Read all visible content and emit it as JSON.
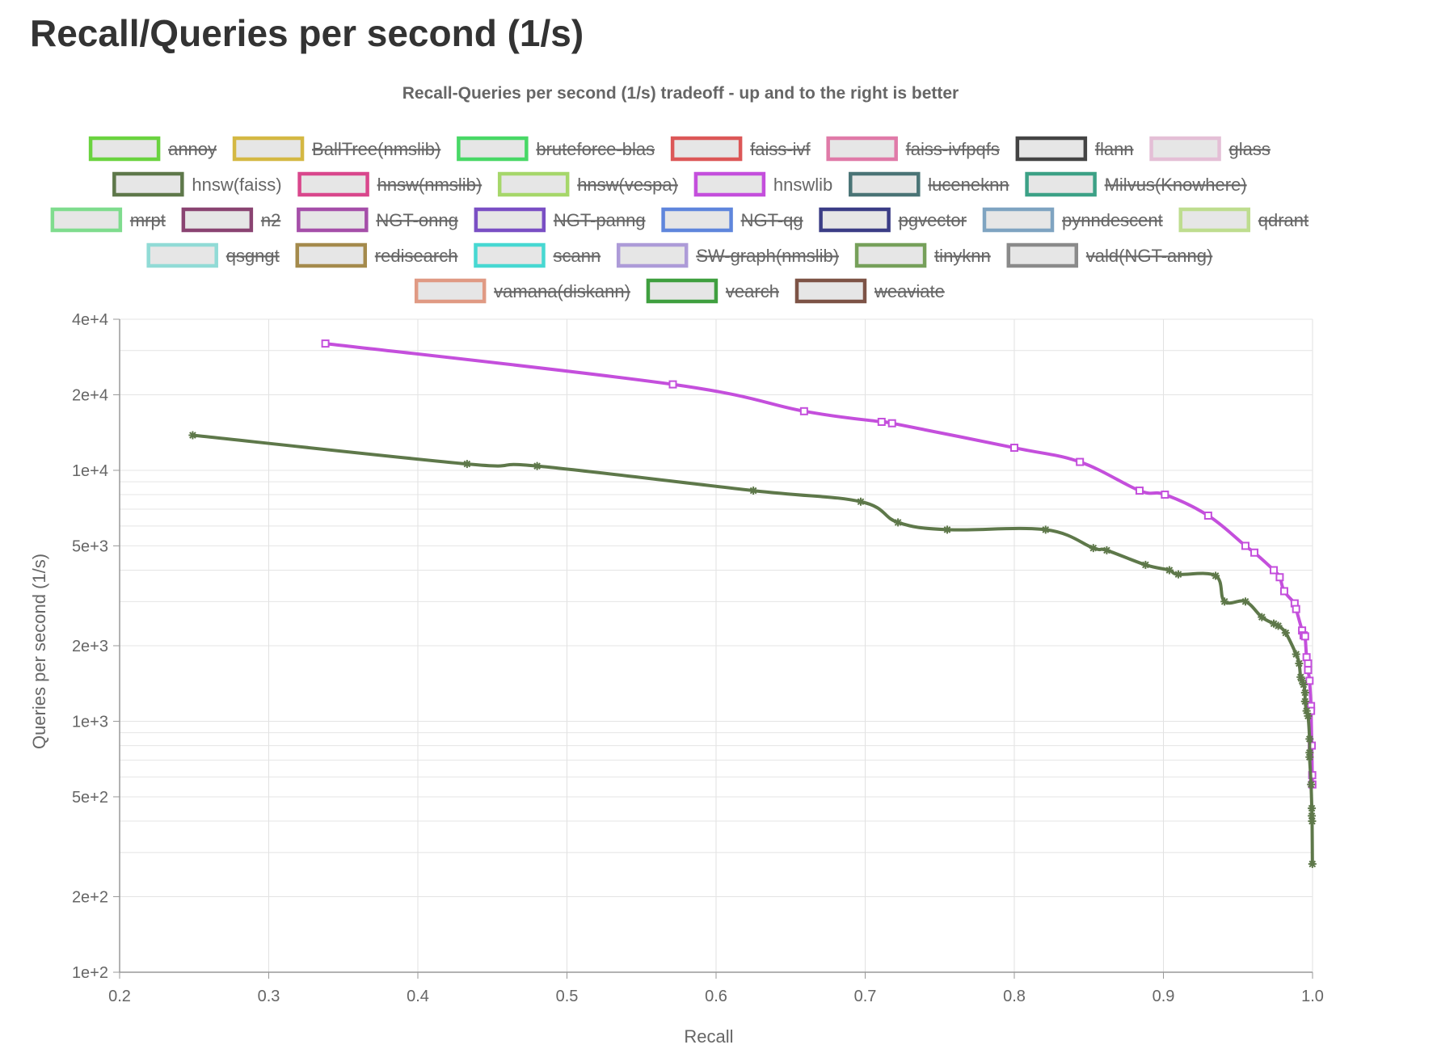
{
  "page": {
    "title": "Recall/Queries per second (1/s)"
  },
  "chart_data": {
    "type": "line",
    "title": "Recall-Queries per second (1/s) tradeoff - up and to the right is better",
    "xlabel": "Recall",
    "ylabel": "Queries per second (1/s)",
    "xlim": [
      0.2,
      1.0
    ],
    "ylim": [
      100,
      40000
    ],
    "yscale": "log",
    "grid": true,
    "legend_position": "top",
    "x_ticks": [
      {
        "value": 0.2,
        "label": "0.2"
      },
      {
        "value": 0.3,
        "label": "0.3"
      },
      {
        "value": 0.4,
        "label": "0.4"
      },
      {
        "value": 0.5,
        "label": "0.5"
      },
      {
        "value": 0.6,
        "label": "0.6"
      },
      {
        "value": 0.7,
        "label": "0.7"
      },
      {
        "value": 0.8,
        "label": "0.8"
      },
      {
        "value": 0.9,
        "label": "0.9"
      },
      {
        "value": 1.0,
        "label": "1.0"
      }
    ],
    "y_ticks": [
      {
        "value": 100,
        "label": "1e+2"
      },
      {
        "value": 200,
        "label": "2e+2"
      },
      {
        "value": 500,
        "label": "5e+2"
      },
      {
        "value": 1000,
        "label": "1e+3"
      },
      {
        "value": 2000,
        "label": "2e+3"
      },
      {
        "value": 5000,
        "label": "5e+3"
      },
      {
        "value": 10000,
        "label": "1e+4"
      },
      {
        "value": 20000,
        "label": "2e+4"
      },
      {
        "value": 40000,
        "label": "4e+4"
      }
    ],
    "legend_rows": [
      [
        {
          "name": "annoy",
          "color": "#6ad33f",
          "hidden": true
        },
        {
          "name": "BallTree(nmslib)",
          "color": "#d4b843",
          "hidden": true
        },
        {
          "name": "bruteforce-blas",
          "color": "#48d866",
          "hidden": true
        },
        {
          "name": "faiss-ivf",
          "color": "#dc5757",
          "hidden": true
        },
        {
          "name": "faiss-ivfpqfs",
          "color": "#e07aa8",
          "hidden": true
        },
        {
          "name": "flann",
          "color": "#444444",
          "hidden": true
        },
        {
          "name": "glass",
          "color": "#e4bfd6",
          "hidden": true
        }
      ],
      [
        {
          "name": "hnsw(faiss)",
          "color": "#5e784a",
          "hidden": false
        },
        {
          "name": "hnsw(nmslib)",
          "color": "#d9478c",
          "hidden": true
        },
        {
          "name": "hnsw(vespa)",
          "color": "#a6d76a",
          "hidden": true
        },
        {
          "name": "hnswlib",
          "color": "#c44fdc",
          "hidden": false
        },
        {
          "name": "luceneknn",
          "color": "#4a7476",
          "hidden": true
        },
        {
          "name": "Milvus(Knowhere)",
          "color": "#3ca186",
          "hidden": true
        }
      ],
      [
        {
          "name": "mrpt",
          "color": "#7fdc8e",
          "hidden": true
        },
        {
          "name": "n2",
          "color": "#8a4472",
          "hidden": true
        },
        {
          "name": "NGT-onng",
          "color": "#a54fa9",
          "hidden": true
        },
        {
          "name": "NGT-panng",
          "color": "#7a4fc4",
          "hidden": true
        },
        {
          "name": "NGT-qg",
          "color": "#5f86dc",
          "hidden": true
        },
        {
          "name": "pgvector",
          "color": "#3b3d86",
          "hidden": true
        },
        {
          "name": "pynndescent",
          "color": "#7fa4c1",
          "hidden": true
        },
        {
          "name": "qdrant",
          "color": "#bedd8f",
          "hidden": true
        }
      ],
      [
        {
          "name": "qsgngt",
          "color": "#91dbd6",
          "hidden": true
        },
        {
          "name": "redisearch",
          "color": "#a48a4c",
          "hidden": true
        },
        {
          "name": "scann",
          "color": "#47d8d2",
          "hidden": true
        },
        {
          "name": "SW-graph(nmslib)",
          "color": "#ad9bd8",
          "hidden": true
        },
        {
          "name": "tinyknn",
          "color": "#76a05a",
          "hidden": true
        },
        {
          "name": "vald(NGT-anng)",
          "color": "#8a8a8a",
          "hidden": true
        }
      ],
      [
        {
          "name": "vamana(diskann)",
          "color": "#e09a84",
          "hidden": true
        },
        {
          "name": "vearch",
          "color": "#3f9f3f",
          "hidden": true
        },
        {
          "name": "weaviate",
          "color": "#7d5346",
          "hidden": true
        }
      ]
    ],
    "series": [
      {
        "name": "hnswlib",
        "color": "#c44fdc",
        "marker": "square",
        "points": [
          [
            0.338,
            32000
          ],
          [
            0.571,
            22000
          ],
          [
            0.659,
            17200
          ],
          [
            0.711,
            15600
          ],
          [
            0.718,
            15400
          ],
          [
            0.8,
            12300
          ],
          [
            0.844,
            10800
          ],
          [
            0.884,
            8300
          ],
          [
            0.901,
            8000
          ],
          [
            0.93,
            6600
          ],
          [
            0.955,
            5000
          ],
          [
            0.961,
            4700
          ],
          [
            0.974,
            4000
          ],
          [
            0.978,
            3750
          ],
          [
            0.981,
            3300
          ],
          [
            0.988,
            2950
          ],
          [
            0.989,
            2800
          ],
          [
            0.993,
            2300
          ],
          [
            0.994,
            2200
          ],
          [
            0.995,
            2180
          ],
          [
            0.996,
            1800
          ],
          [
            0.997,
            1700
          ],
          [
            0.997,
            1600
          ],
          [
            0.998,
            1450
          ],
          [
            0.999,
            1150
          ],
          [
            0.999,
            1100
          ],
          [
            0.9995,
            800
          ],
          [
            0.9998,
            610
          ],
          [
            0.9999,
            560
          ]
        ]
      },
      {
        "name": "hnsw(faiss)",
        "color": "#5e784a",
        "marker": "asterisk",
        "points": [
          [
            0.249,
            13800
          ],
          [
            0.433,
            10600
          ],
          [
            0.48,
            10400
          ],
          [
            0.625,
            8300
          ],
          [
            0.697,
            7500
          ],
          [
            0.722,
            6200
          ],
          [
            0.755,
            5800
          ],
          [
            0.821,
            5800
          ],
          [
            0.853,
            4900
          ],
          [
            0.862,
            4800
          ],
          [
            0.888,
            4200
          ],
          [
            0.904,
            4000
          ],
          [
            0.91,
            3850
          ],
          [
            0.935,
            3800
          ],
          [
            0.941,
            3000
          ],
          [
            0.955,
            3000
          ],
          [
            0.966,
            2600
          ],
          [
            0.974,
            2450
          ],
          [
            0.977,
            2400
          ],
          [
            0.982,
            2250
          ],
          [
            0.989,
            1850
          ],
          [
            0.991,
            1700
          ],
          [
            0.992,
            1500
          ],
          [
            0.993,
            1450
          ],
          [
            0.994,
            1400
          ],
          [
            0.995,
            1300
          ],
          [
            0.995,
            1200
          ],
          [
            0.996,
            1100
          ],
          [
            0.997,
            1050
          ],
          [
            0.998,
            850
          ],
          [
            0.998,
            750
          ],
          [
            0.998,
            720
          ],
          [
            0.999,
            560
          ],
          [
            0.9995,
            450
          ],
          [
            0.9995,
            420
          ],
          [
            0.9997,
            400
          ],
          [
            0.9999,
            270
          ]
        ]
      }
    ]
  }
}
